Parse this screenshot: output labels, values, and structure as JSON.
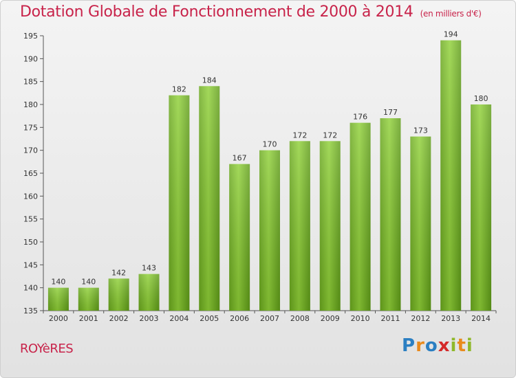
{
  "chart_data": {
    "type": "bar",
    "title": "Dotation Globale de Fonctionnement de 2000 à 2014",
    "unit": "(en milliers d'€)",
    "categories": [
      "2000",
      "2001",
      "2002",
      "2003",
      "2004",
      "2005",
      "2006",
      "2007",
      "2008",
      "2009",
      "2010",
      "2011",
      "2012",
      "2013",
      "2014"
    ],
    "values": [
      140,
      140,
      142,
      143,
      182,
      184,
      167,
      170,
      172,
      172,
      176,
      177,
      173,
      194,
      180
    ],
    "ylim": [
      135,
      195
    ],
    "yticks": [
      135,
      140,
      145,
      150,
      155,
      160,
      165,
      170,
      175,
      180,
      185,
      190,
      195
    ],
    "grid": false,
    "bar_color": "#7cc22a"
  },
  "place_name": "ROYèRES",
  "logo": {
    "text": "Proxiti",
    "letters": [
      {
        "ch": "P",
        "color": "#2b7fc2"
      },
      {
        "ch": "r",
        "color": "#e98a1c"
      },
      {
        "ch": "o",
        "color": "#2b7fc2"
      },
      {
        "ch": "x",
        "color": "#d42a2a"
      },
      {
        "ch": "i",
        "color": "#8fb82a"
      },
      {
        "ch": "t",
        "color": "#e98a1c"
      },
      {
        "ch": "i",
        "color": "#8fb82a"
      }
    ]
  }
}
